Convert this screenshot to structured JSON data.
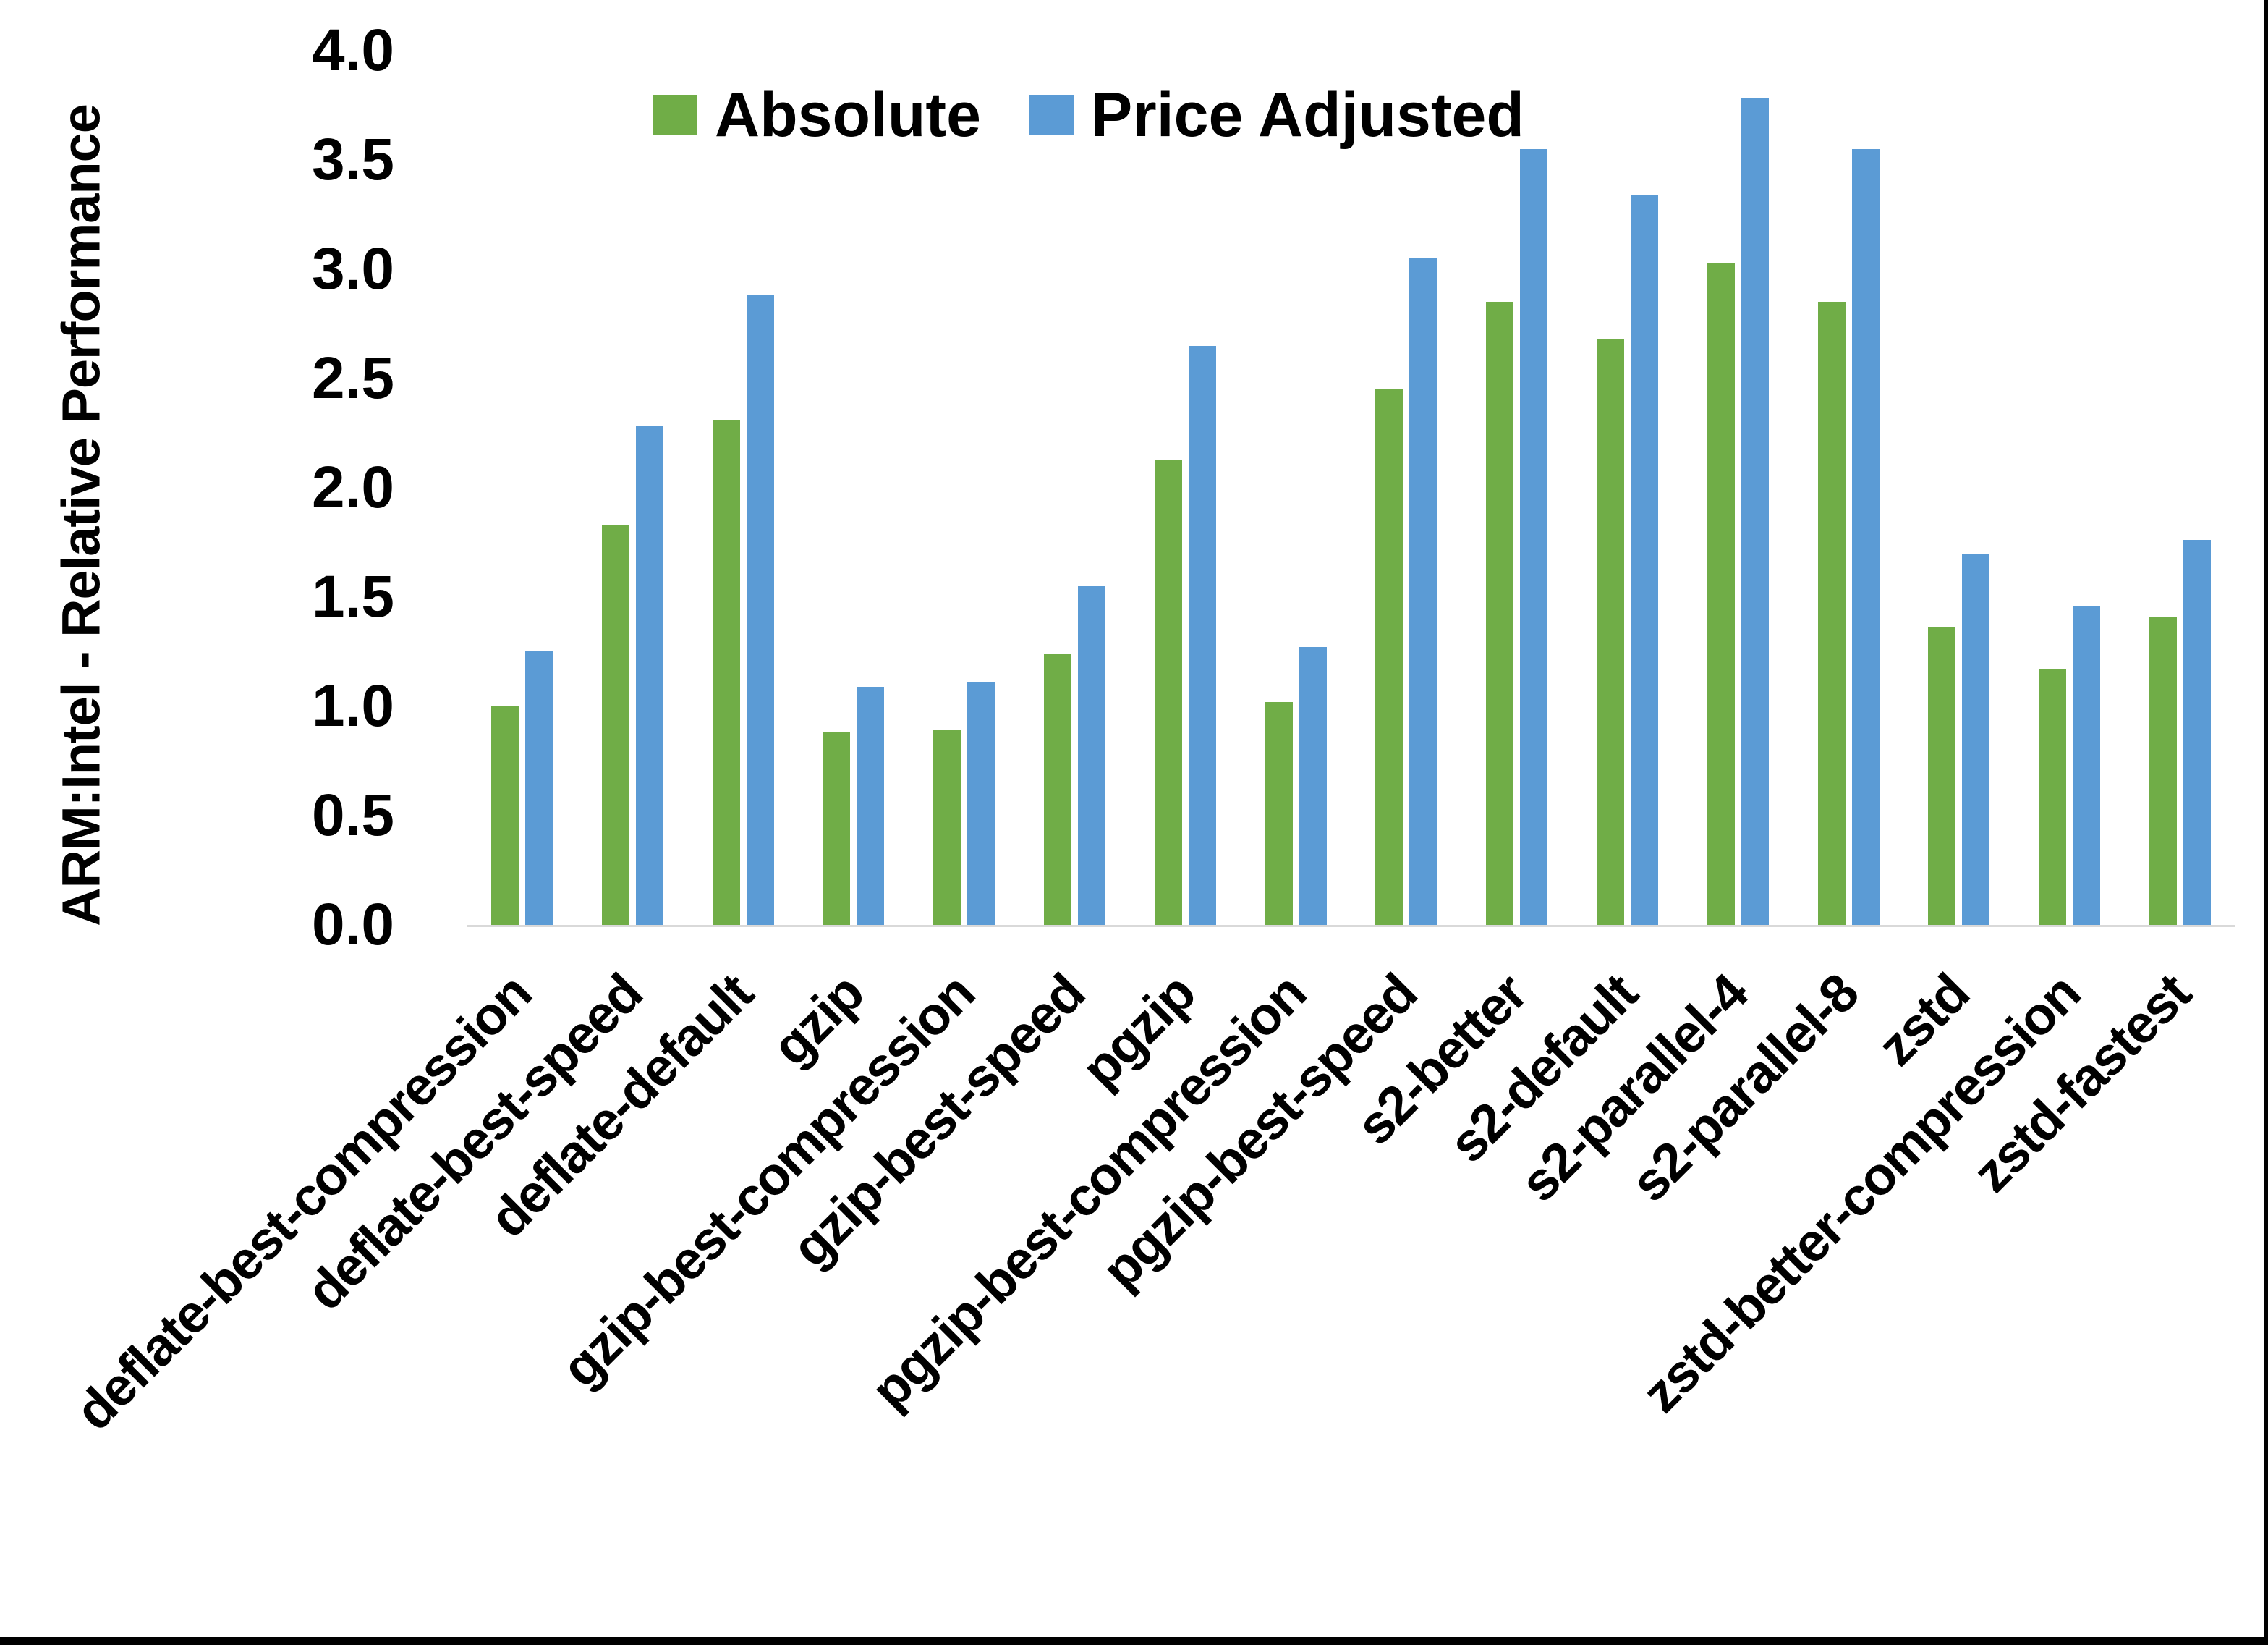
{
  "chart_data": {
    "type": "bar",
    "title": "",
    "xlabel": "",
    "ylabel": "ARM:Intel - Relative Performance",
    "ylim": [
      0.0,
      4.0
    ],
    "y_tick_labels": [
      "0.0",
      "0.5",
      "1.0",
      "1.5",
      "2.0",
      "2.5",
      "3.0",
      "3.5",
      "4.0"
    ],
    "grid": false,
    "legend_position": "top-center",
    "categories": [
      "deflate-best-compression",
      "deflate-best-speed",
      "deflate-default",
      "gzip",
      "gzip-best-compression",
      "gzip-best-speed",
      "pgzip",
      "pgzip-best-compression",
      "pgzip-best-speed",
      "s2-better",
      "s2-default",
      "s2-parallel-4",
      "s2-parallel-8",
      "zstd",
      "zstd-better-compression",
      "zstd-fastest"
    ],
    "series": [
      {
        "name": "Absolute",
        "color": "#70AD47",
        "values": [
          1.0,
          1.83,
          2.31,
          0.88,
          0.89,
          1.24,
          2.13,
          1.02,
          2.45,
          2.85,
          2.68,
          3.03,
          2.85,
          1.36,
          1.17,
          1.41
        ]
      },
      {
        "name": "Price Adjusted",
        "color": "#5B9BD5",
        "values": [
          1.25,
          2.28,
          2.88,
          1.09,
          1.11,
          1.55,
          2.65,
          1.27,
          3.05,
          3.55,
          3.34,
          3.78,
          3.55,
          1.7,
          1.46,
          1.76
        ]
      }
    ],
    "axis_line_color": "#D9D9D9"
  },
  "frame": {
    "right_edge_color": "#000000",
    "bottom_bar_color": "#000000"
  }
}
